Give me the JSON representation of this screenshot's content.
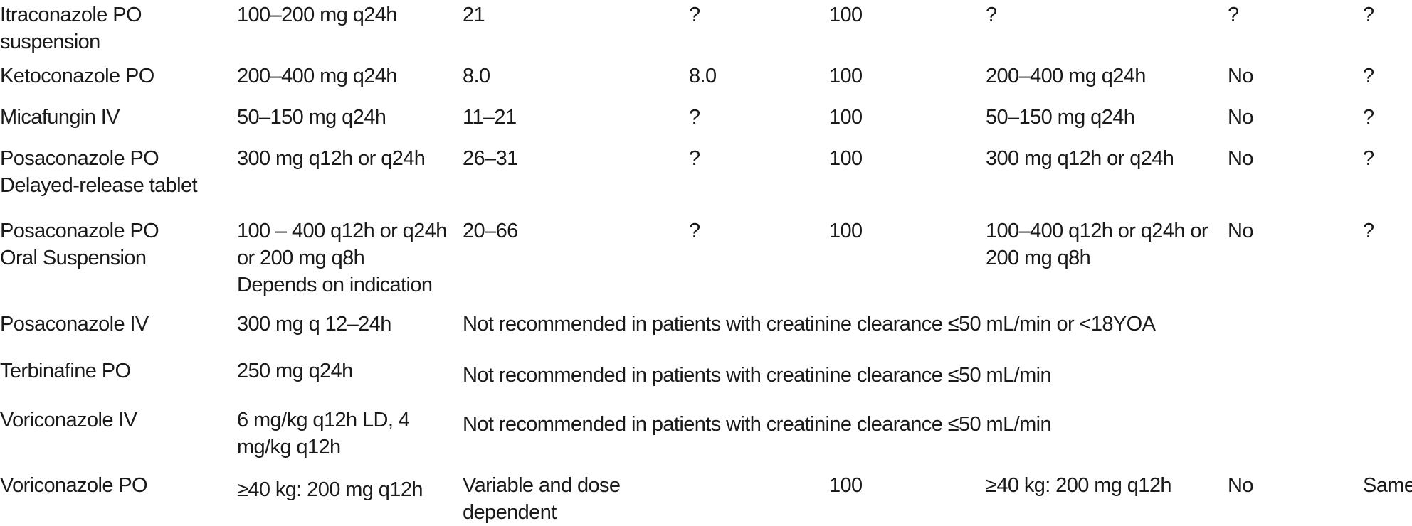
{
  "page": {
    "background_color": "#ffffff",
    "text_color": "#1a1a1a"
  },
  "table": {
    "description": "antifungal-renal-dosing-table-fragment",
    "rows": [
      {
        "cells": [
          {
            "text": "Itraconazole PO\nsuspension"
          },
          {
            "text": "100–200 mg q24h"
          },
          {
            "text": "21"
          },
          {
            "text": "?"
          },
          {
            "text": "100"
          },
          {
            "text": "?"
          },
          {
            "text": "?"
          },
          {
            "text": "?"
          }
        ]
      },
      {
        "cells": [
          {
            "text": "Ketoconazole PO"
          },
          {
            "text": "200–400 mg q24h"
          },
          {
            "text": "8.0"
          },
          {
            "text": "8.0"
          },
          {
            "text": "100"
          },
          {
            "text": "200–400 mg q24h"
          },
          {
            "text": "No"
          },
          {
            "text": "?"
          }
        ]
      },
      {
        "cells": [
          {
            "text": "Micafungin IV"
          },
          {
            "text": "50–150 mg q24h"
          },
          {
            "text": "11–21"
          },
          {
            "text": "?"
          },
          {
            "text": "100"
          },
          {
            "text": "50–150 mg q24h"
          },
          {
            "text": "No"
          },
          {
            "text": "?"
          }
        ]
      },
      {
        "cells": [
          {
            "text": "Posaconazole PO\nDelayed-release tablet"
          },
          {
            "text": "300 mg q12h or q24h"
          },
          {
            "text": "26–31"
          },
          {
            "text": "?"
          },
          {
            "text": "100"
          },
          {
            "text": "300 mg q12h or q24h"
          },
          {
            "text": "No"
          },
          {
            "text": "?"
          }
        ]
      },
      {
        "cells": [
          {
            "text": "Posaconazole PO\nOral Suspension"
          },
          {
            "text": "100 – 400 q12h or q24h\nor 200 mg q8h\nDepends on indication"
          },
          {
            "text": "20–66"
          },
          {
            "text": "?"
          },
          {
            "text": "100"
          },
          {
            "text": "100–400 q12h or q24h or\n200 mg q8h"
          },
          {
            "text": "No"
          },
          {
            "text": "?"
          }
        ]
      },
      {
        "cells": [
          {
            "text": "Posaconazole IV"
          },
          {
            "text": "300 mg q 12–24h"
          },
          {
            "text": "Not recommended in patients with creatinine clearance ≤50 mL/min or <18YOA",
            "colspan": 6
          }
        ]
      },
      {
        "cells": [
          {
            "text": "Terbinafine PO"
          },
          {
            "text": "250 mg q24h"
          },
          {
            "text": "Not recommended in patients with creatinine clearance ≤50 mL/min",
            "colspan": 6
          }
        ]
      },
      {
        "cells": [
          {
            "text": "Voriconazole IV"
          },
          {
            "text": "6 mg/kg q12h LD, 4\nmg/kg q12h"
          },
          {
            "text": "Not recommended in patients with creatinine clearance ≤50 mL/min",
            "colspan": 6
          }
        ]
      },
      {
        "cells": [
          {
            "text": "Voriconazole PO"
          },
          {
            "text": "≥40 kg: 200 mg q12h"
          },
          {
            "text": "Variable and dose\ndependent"
          },
          {
            "text": ""
          },
          {
            "text": "100"
          },
          {
            "text": "≥40 kg: 200 mg q12h"
          },
          {
            "text": "No"
          },
          {
            "text": "Same"
          }
        ]
      }
    ]
  }
}
